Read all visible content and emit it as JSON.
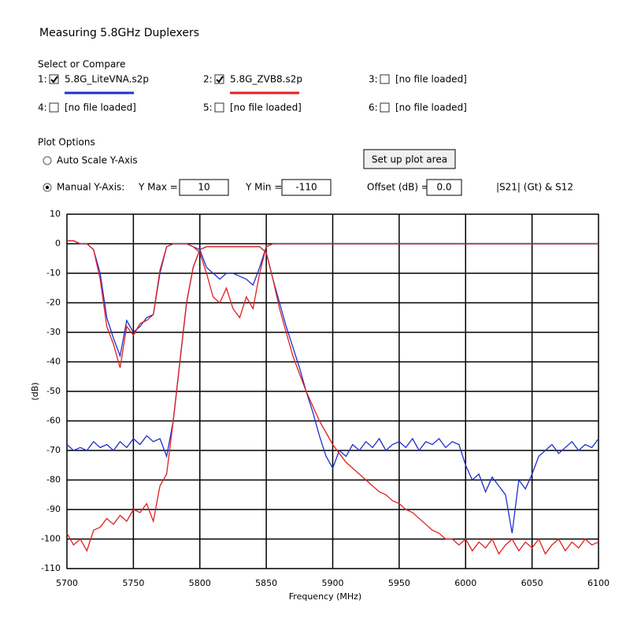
{
  "header": {
    "title": "Measuring 5.8GHz Duplexers"
  },
  "select": {
    "label": "Select or Compare",
    "files": [
      {
        "index": "1:",
        "name": "5.8G_LiteVNA.s2p",
        "checked": true,
        "color": "#1f2fd0"
      },
      {
        "index": "2:",
        "name": "5.8G_ZVB8.s2p",
        "checked": true,
        "color": "#e02020"
      },
      {
        "index": "3:",
        "name": "[no file loaded]",
        "checked": false
      },
      {
        "index": "4:",
        "name": "[no file loaded]",
        "checked": false
      },
      {
        "index": "5:",
        "name": "[no file loaded]",
        "checked": false
      },
      {
        "index": "6:",
        "name": "[no file loaded]",
        "checked": false
      }
    ]
  },
  "plot_options": {
    "label": "Plot Options",
    "auto_scale": "Auto Scale Y-Axis",
    "manual": "Manual Y-Axis:",
    "selected": "manual",
    "ymax_label": "Y Max =",
    "ymax": "10",
    "ymin_label": "Y Min =",
    "ymin": "-110",
    "button": "Set up plot area",
    "offset_label": "Offset (dB) =",
    "offset": "0.0",
    "mode": "|S21| (Gt) & S12"
  },
  "chart_data": {
    "type": "line",
    "xlabel": "Frequency (MHz)",
    "ylabel": "(dB)",
    "xlim": [
      5700,
      6100
    ],
    "xticks": [
      5700,
      5750,
      5800,
      5850,
      5900,
      5950,
      6000,
      6050,
      6100
    ],
    "ylim": [
      -110,
      10
    ],
    "yticks": [
      10,
      0,
      -10,
      -20,
      -30,
      -40,
      -50,
      -60,
      -70,
      -80,
      -90,
      -100,
      -110
    ],
    "grid": true,
    "x": [
      5700,
      5705,
      5710,
      5715,
      5720,
      5725,
      5730,
      5735,
      5740,
      5745,
      5750,
      5755,
      5760,
      5765,
      5770,
      5775,
      5780,
      5785,
      5790,
      5795,
      5800,
      5805,
      5810,
      5815,
      5820,
      5825,
      5830,
      5835,
      5840,
      5845,
      5850,
      5855,
      5860,
      5865,
      5870,
      5875,
      5880,
      5885,
      5890,
      5895,
      5900,
      5905,
      5910,
      5915,
      5920,
      5925,
      5930,
      5935,
      5940,
      5945,
      5950,
      5955,
      5960,
      5965,
      5970,
      5975,
      5980,
      5985,
      5990,
      5995,
      6000,
      6005,
      6010,
      6015,
      6020,
      6025,
      6030,
      6035,
      6040,
      6045,
      6050,
      6055,
      6060,
      6065,
      6070,
      6075,
      6080,
      6085,
      6090,
      6095,
      6100
    ],
    "series": [
      {
        "color": "#1f2fd0",
        "values": [
          -68,
          -70,
          -69,
          -70,
          -67,
          -69,
          -68,
          -70,
          -67,
          -69,
          -66,
          -68,
          -65,
          -67,
          -66,
          -72,
          -60,
          -40,
          -20,
          -8,
          -2,
          -1,
          -1,
          -1,
          -1,
          -1,
          -1,
          -1,
          -1,
          -1,
          -3,
          -12,
          -20,
          -28,
          -35,
          -42,
          -50,
          -57,
          -65,
          -72,
          -76,
          -70,
          -72,
          -68,
          -70,
          -67,
          -69,
          -66,
          -70,
          -68,
          -67,
          -69,
          -66,
          -70,
          -67,
          -68,
          -66,
          -69,
          -67,
          -68,
          -75,
          -80,
          -78,
          -84,
          -79,
          -82,
          -85,
          -98,
          -80,
          -83,
          -78,
          -72,
          -70,
          -68,
          -71,
          -69,
          -67,
          -70,
          -68,
          -69,
          -66
        ]
      },
      {
        "color": "#e02020",
        "values": [
          -98,
          -102,
          -100,
          -104,
          -97,
          -96,
          -93,
          -95,
          -92,
          -94,
          -90,
          -91,
          -88,
          -94,
          -82,
          -78,
          -60,
          -40,
          -20,
          -8,
          -2,
          -1,
          -1,
          -1,
          -1,
          -1,
          -1,
          -1,
          -1,
          -1,
          -3,
          -12,
          -22,
          -30,
          -38,
          -44,
          -50,
          -55,
          -60,
          -64,
          -68,
          -71,
          -74,
          -76,
          -78,
          -80,
          -82,
          -84,
          -85,
          -87,
          -88,
          -90,
          -91,
          -93,
          -95,
          -97,
          -98,
          -100,
          -100,
          -102,
          -100,
          -104,
          -101,
          -103,
          -100,
          -105,
          -102,
          -100,
          -104,
          -101,
          -103,
          -100,
          -105,
          -102,
          -100,
          -104,
          -101,
          -103,
          -100,
          -102,
          -101
        ]
      },
      {
        "color": "#1f2fd0",
        "values": [
          1,
          1,
          0,
          0,
          -2,
          -10,
          -25,
          -32,
          -38,
          -26,
          -30,
          -28,
          -25,
          -24,
          -10,
          -1,
          0,
          0,
          0,
          -1,
          -2,
          -8,
          -10,
          -12,
          -10,
          -10,
          -11,
          -12,
          -14,
          -8,
          -1,
          0,
          0,
          0,
          0,
          0,
          0,
          0,
          0,
          0,
          0,
          0,
          0,
          0,
          0,
          0,
          0,
          0,
          0,
          0,
          0,
          0,
          0,
          0,
          0,
          0,
          0,
          0,
          0,
          0,
          0,
          0,
          0,
          0,
          0,
          0,
          0,
          0,
          0,
          0,
          0,
          0,
          0,
          0,
          0,
          0,
          0,
          0,
          0,
          0,
          0
        ]
      },
      {
        "color": "#e02020",
        "values": [
          1,
          1,
          0,
          0,
          -2,
          -12,
          -28,
          -34,
          -42,
          -28,
          -31,
          -27,
          -26,
          -24,
          -9,
          -1,
          0,
          0,
          0,
          -1,
          -3,
          -10,
          -18,
          -20,
          -15,
          -22,
          -25,
          -18,
          -22,
          -10,
          -1,
          0,
          0,
          0,
          0,
          0,
          0,
          0,
          0,
          0,
          0,
          0,
          0,
          0,
          0,
          0,
          0,
          0,
          0,
          0,
          0,
          0,
          0,
          0,
          0,
          0,
          0,
          0,
          0,
          0,
          0,
          0,
          0,
          0,
          0,
          0,
          0,
          0,
          0,
          0,
          0,
          0,
          0,
          0,
          0,
          0,
          0,
          0,
          0,
          0,
          0
        ]
      }
    ]
  }
}
